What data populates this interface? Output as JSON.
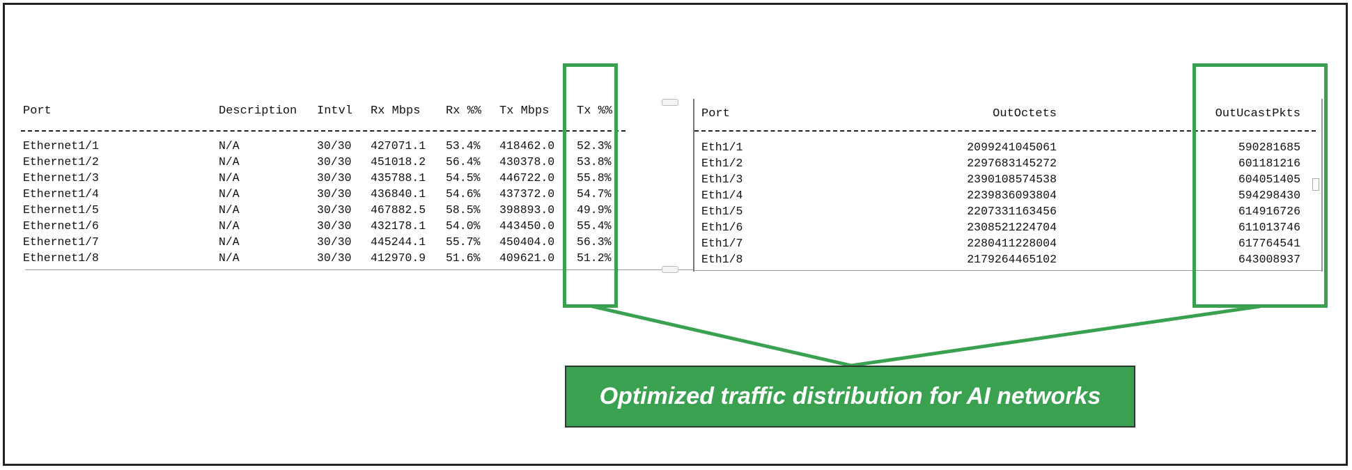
{
  "left_table": {
    "headers": [
      "Port",
      "Description",
      "Intvl",
      "Rx Mbps",
      "Rx %%",
      "Tx Mbps",
      "Tx %%"
    ],
    "rows": [
      [
        "Ethernet1/1",
        "N/A",
        "30/30",
        "427071.1",
        "53.4%",
        "418462.0",
        "52.3%"
      ],
      [
        "Ethernet1/2",
        "N/A",
        "30/30",
        "451018.2",
        "56.4%",
        "430378.0",
        "53.8%"
      ],
      [
        "Ethernet1/3",
        "N/A",
        "30/30",
        "435788.1",
        "54.5%",
        "446722.0",
        "55.8%"
      ],
      [
        "Ethernet1/4",
        "N/A",
        "30/30",
        "436840.1",
        "54.6%",
        "437372.0",
        "54.7%"
      ],
      [
        "Ethernet1/5",
        "N/A",
        "30/30",
        "467882.5",
        "58.5%",
        "398893.0",
        "49.9%"
      ],
      [
        "Ethernet1/6",
        "N/A",
        "30/30",
        "432178.1",
        "54.0%",
        "443450.0",
        "55.4%"
      ],
      [
        "Ethernet1/7",
        "N/A",
        "30/30",
        "445244.1",
        "55.7%",
        "450404.0",
        "56.3%"
      ],
      [
        "Ethernet1/8",
        "N/A",
        "30/30",
        "412970.9",
        "51.6%",
        "409621.0",
        "51.2%"
      ]
    ]
  },
  "right_table": {
    "headers": [
      "Port",
      "OutOctets",
      "OutUcastPkts"
    ],
    "rows": [
      [
        "Eth1/1",
        "2099241045061",
        "590281685"
      ],
      [
        "Eth1/2",
        "2297683145272",
        "601181216"
      ],
      [
        "Eth1/3",
        "2390108574538",
        "604051405"
      ],
      [
        "Eth1/4",
        "2239836093804",
        "594298430"
      ],
      [
        "Eth1/5",
        "2207331163456",
        "614916726"
      ],
      [
        "Eth1/6",
        "2308521224704",
        "611013746"
      ],
      [
        "Eth1/7",
        "2280411228004",
        "617764541"
      ],
      [
        "Eth1/8",
        "2179264465102",
        "643008937"
      ]
    ]
  },
  "callout": {
    "text": "Optimized traffic distribution for AI networks"
  },
  "colors": {
    "highlight": "#3aa150",
    "callout_background": "#3aa150",
    "text": "#111111"
  }
}
